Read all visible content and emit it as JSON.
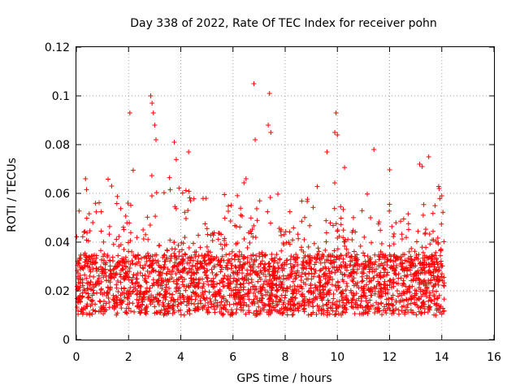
{
  "chart_data": {
    "type": "scatter",
    "title": "Day 338 of 2022, Rate Of TEC Index for receiver pohn",
    "xlabel": "GPS time / hours",
    "ylabel": "ROTI / TECUs",
    "xlim": [
      0,
      16
    ],
    "ylim": [
      0,
      0.12
    ],
    "xticks": [
      0,
      2,
      4,
      6,
      8,
      10,
      12,
      14,
      16
    ],
    "xtick_labels": [
      "0",
      "2",
      "4",
      "6",
      "8",
      "10",
      "12",
      "14",
      "16"
    ],
    "yticks": [
      0,
      0.02,
      0.04,
      0.06,
      0.08,
      0.1,
      0.12
    ],
    "ytick_labels": [
      "0",
      "0.02",
      "0.04",
      "0.06",
      "0.08",
      "0.1",
      "0.12"
    ],
    "grid": true,
    "marker": "+",
    "color": "#ff0000",
    "series": [
      {
        "name": "ROTI",
        "data_extent": {
          "x_min": 0.0,
          "x_max": 14.1,
          "typical_low": 0.01,
          "typical_high": 0.035
        },
        "notable_points": [
          {
            "x": 2.05,
            "y": 0.093
          },
          {
            "x": 2.85,
            "y": 0.1
          },
          {
            "x": 2.9,
            "y": 0.097
          },
          {
            "x": 2.95,
            "y": 0.093
          },
          {
            "x": 3.0,
            "y": 0.088
          },
          {
            "x": 3.05,
            "y": 0.082
          },
          {
            "x": 3.75,
            "y": 0.081
          },
          {
            "x": 4.3,
            "y": 0.077
          },
          {
            "x": 6.8,
            "y": 0.105
          },
          {
            "x": 6.85,
            "y": 0.082
          },
          {
            "x": 7.4,
            "y": 0.101
          },
          {
            "x": 7.35,
            "y": 0.088
          },
          {
            "x": 7.45,
            "y": 0.085
          },
          {
            "x": 9.95,
            "y": 0.093
          },
          {
            "x": 9.9,
            "y": 0.085
          },
          {
            "x": 10.0,
            "y": 0.084
          },
          {
            "x": 9.6,
            "y": 0.077
          },
          {
            "x": 11.4,
            "y": 0.078
          },
          {
            "x": 13.5,
            "y": 0.075
          },
          {
            "x": 13.15,
            "y": 0.072
          },
          {
            "x": 13.25,
            "y": 0.071
          },
          {
            "x": 0.35,
            "y": 0.066
          },
          {
            "x": 1.35,
            "y": 0.063
          },
          {
            "x": 6.5,
            "y": 0.066
          },
          {
            "x": 13.9,
            "y": 0.062
          },
          {
            "x": 14.0,
            "y": 0.059
          }
        ]
      }
    ]
  }
}
